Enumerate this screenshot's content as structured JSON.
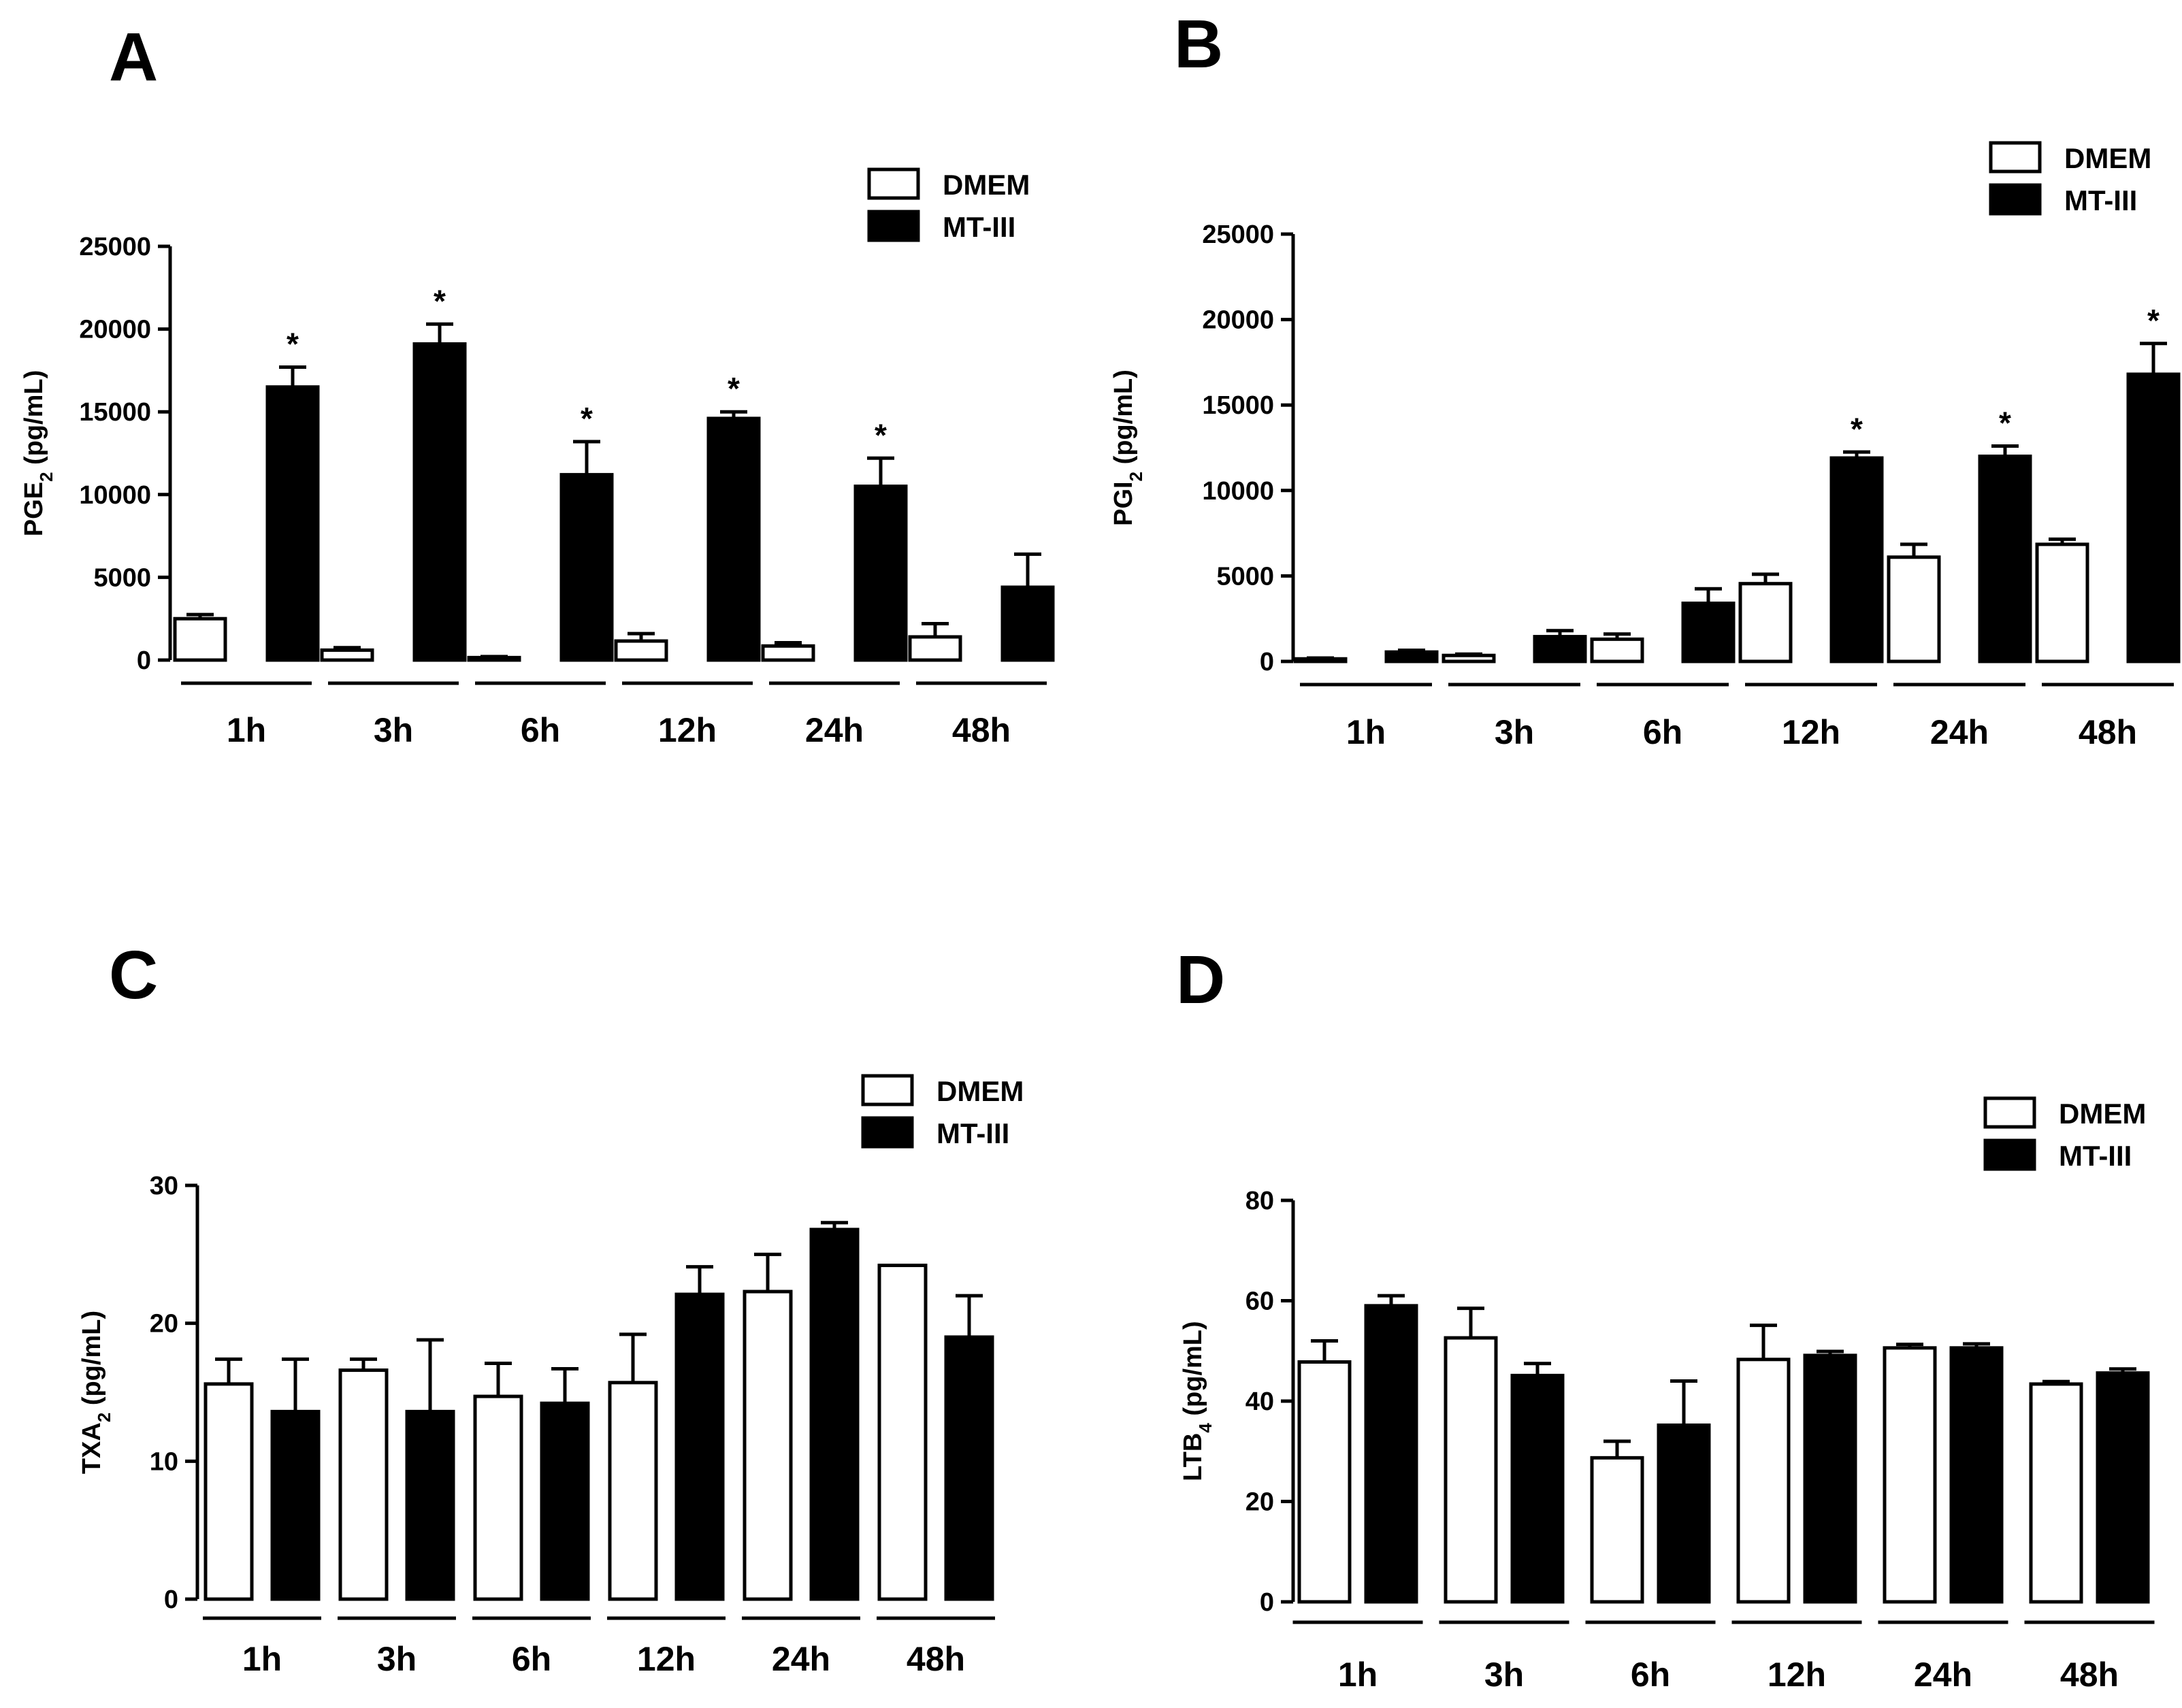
{
  "chart_data": [
    {
      "panel": "A",
      "type": "bar",
      "ylabel_main": "PGE",
      "ylabel_sub": "2",
      "ylabel_rest": " (pg/mL)",
      "categories": [
        "1h",
        "3h",
        "6h",
        "12h",
        "24h",
        "48h"
      ],
      "ylim": [
        0,
        25000
      ],
      "yticks": [
        "0",
        "5000",
        "10000",
        "15000",
        "20000",
        "25000"
      ],
      "legend": [
        "DMEM",
        "MT-III"
      ],
      "series": [
        {
          "name": "DMEM",
          "values": [
            2500,
            600,
            150,
            1150,
            850,
            1400
          ],
          "errors": [
            250,
            150,
            60,
            450,
            200,
            800
          ],
          "sig": [
            "",
            "",
            "",
            "",
            "",
            ""
          ]
        },
        {
          "name": "MT-III",
          "values": [
            16500,
            19100,
            11200,
            14600,
            10500,
            4400
          ],
          "errors": [
            1200,
            1200,
            2000,
            400,
            1700,
            2000
          ],
          "sig": [
            "*",
            "*",
            "*",
            "*",
            "*",
            ""
          ]
        }
      ]
    },
    {
      "panel": "B",
      "type": "bar",
      "ylabel_main": "PGI",
      "ylabel_sub": "2",
      "ylabel_rest": " (pg/mL)",
      "categories": [
        "1h",
        "3h",
        "6h",
        "12h",
        "24h",
        "48h"
      ],
      "ylim": [
        0,
        25000
      ],
      "yticks": [
        "0",
        "5000",
        "10000",
        "15000",
        "20000",
        "25000"
      ],
      "legend": [
        "DMEM",
        "MT-III"
      ],
      "series": [
        {
          "name": "DMEM",
          "values": [
            150,
            350,
            1300,
            4550,
            6100,
            6850
          ],
          "errors": [
            50,
            80,
            300,
            550,
            750,
            300
          ],
          "sig": [
            "",
            "",
            "",
            "",
            "",
            ""
          ]
        },
        {
          "name": "MT-III",
          "values": [
            550,
            1450,
            3400,
            11900,
            12000,
            16800
          ],
          "errors": [
            100,
            350,
            850,
            350,
            600,
            1800
          ],
          "sig": [
            "",
            "",
            "",
            "*",
            "*",
            "*"
          ]
        }
      ]
    },
    {
      "panel": "C",
      "type": "bar",
      "ylabel_main": "TXA",
      "ylabel_sub": "2",
      "ylabel_rest": " (pg/mL)",
      "categories": [
        "1h",
        "3h",
        "6h",
        "12h",
        "24h",
        "48h"
      ],
      "ylim": [
        0,
        30
      ],
      "yticks": [
        "0",
        "10",
        "20",
        "30"
      ],
      "legend": [
        "DMEM",
        "MT-III"
      ],
      "series": [
        {
          "name": "DMEM",
          "values": [
            15.6,
            16.6,
            14.7,
            15.7,
            22.3,
            24.2
          ],
          "errors": [
            1.8,
            0.8,
            2.4,
            3.5,
            2.7,
            0
          ],
          "sig": [
            "",
            "",
            "",
            "",
            "",
            ""
          ]
        },
        {
          "name": "MT-III",
          "values": [
            13.6,
            13.6,
            14.2,
            22.1,
            26.8,
            19.0
          ],
          "errors": [
            3.8,
            5.2,
            2.5,
            2.0,
            0.5,
            3.0
          ],
          "sig": [
            "",
            "",
            "",
            "",
            "",
            ""
          ]
        }
      ]
    },
    {
      "panel": "D",
      "type": "bar",
      "ylabel_main": "LTB",
      "ylabel_sub": "4",
      "ylabel_rest": " (pg/mL)",
      "categories": [
        "1h",
        "3h",
        "6h",
        "12h",
        "24h",
        "48h"
      ],
      "ylim": [
        0,
        80
      ],
      "yticks": [
        "0",
        "20",
        "40",
        "60",
        "80"
      ],
      "legend": [
        "DMEM",
        "MT-III"
      ],
      "series": [
        {
          "name": "DMEM",
          "values": [
            47.8,
            52.6,
            28.7,
            48.3,
            50.6,
            43.4
          ],
          "errors": [
            4.2,
            5.9,
            3.3,
            6.8,
            0.7,
            0.5
          ],
          "sig": [
            "",
            "",
            "",
            "",
            "",
            ""
          ]
        },
        {
          "name": "MT-III",
          "values": [
            59.0,
            45.1,
            35.2,
            49.1,
            50.6,
            45.6
          ],
          "errors": [
            2.0,
            2.4,
            8.8,
            0.8,
            0.8,
            0.8
          ],
          "sig": [
            "",
            "",
            "",
            "",
            "",
            ""
          ]
        }
      ]
    }
  ]
}
